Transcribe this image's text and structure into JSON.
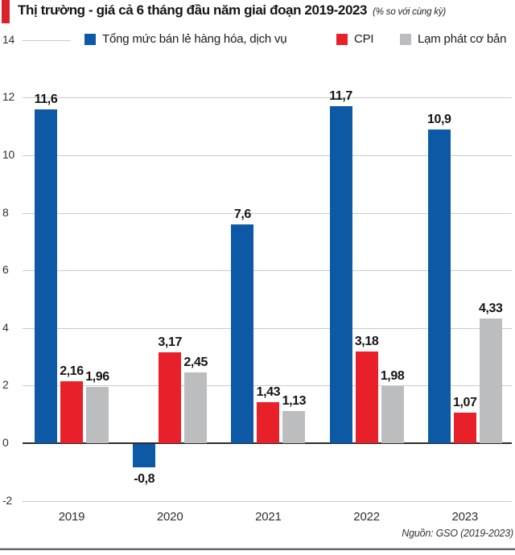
{
  "header": {
    "title": "Thị trường - giá cả 6 tháng đầu năm giai đoạn 2019-2023",
    "subtitle": "(% so với cùng kỳ)",
    "accent_color": "#d9232b"
  },
  "legend": {
    "items": [
      {
        "label": "Tổng mức bán lẻ hàng hóa, dịch vụ",
        "color": "#0e59a6"
      },
      {
        "label": "CPI",
        "color": "#e8202a"
      },
      {
        "label": "Lạm phát cơ bản",
        "color": "#bcbdbf"
      }
    ]
  },
  "chart_data": {
    "type": "bar",
    "title": "Thị trường - giá cả 6 tháng đầu năm giai đoạn 2019-2023",
    "subtitle": "(% so với cùng kỳ)",
    "categories": [
      "2019",
      "2020",
      "2021",
      "2022",
      "2023"
    ],
    "series": [
      {
        "name": "Tổng mức bán lẻ hàng hóa, dịch vụ",
        "color": "#0e59a6",
        "values": [
          11.6,
          -0.8,
          7.6,
          11.7,
          10.9
        ],
        "labels": [
          "11,6",
          "-0,8",
          "7,6",
          "11,7",
          "10,9"
        ]
      },
      {
        "name": "CPI",
        "color": "#e8202a",
        "values": [
          2.16,
          3.17,
          1.43,
          3.18,
          1.07
        ],
        "labels": [
          "2,16",
          "3,17",
          "1,43",
          "3,18",
          "1,07"
        ]
      },
      {
        "name": "Lạm phát cơ bản",
        "color": "#bcbdbf",
        "values": [
          1.96,
          2.45,
          1.13,
          1.98,
          4.33
        ],
        "labels": [
          "1,96",
          "2,45",
          "1,13",
          "1,98",
          "4,33"
        ]
      }
    ],
    "ylim": [
      -2,
      14
    ],
    "ytick_step": 2,
    "grid": true,
    "legend_position": "top",
    "zero_line": true
  },
  "footer": {
    "source": "Nguồn: GSO (2019-2023)"
  },
  "colors": {
    "gridline": "#cacaca",
    "zero_line": "#2b2b2b",
    "bottom_rule": "#5c636b"
  }
}
